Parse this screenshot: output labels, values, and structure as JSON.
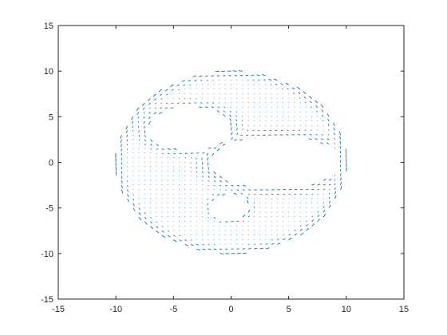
{
  "chart_data": {
    "type": "quiver",
    "title": "",
    "xlabel": "",
    "ylabel": "",
    "xlim": [
      -15,
      15
    ],
    "ylim": [
      -15,
      15
    ],
    "xticks": [
      -15,
      -10,
      -5,
      0,
      5,
      10,
      15
    ],
    "yticks": [
      -15,
      -10,
      -5,
      0,
      5,
      10,
      15
    ],
    "xtick_labels": [
      "-15",
      "-10",
      "-5",
      "0",
      "5",
      "10",
      "15"
    ],
    "ytick_labels": [
      "-15",
      "-10",
      "-5",
      "0",
      "5",
      "10",
      "15"
    ],
    "grid": false,
    "legend": "none",
    "box": true,
    "series_color": "#0072BD",
    "domain": {
      "outer_boundary": {
        "shape": "circle",
        "center": [
          0,
          0
        ],
        "radius": 10
      },
      "holes": [
        {
          "shape": "ellipse",
          "center": [
            -3.6,
            3.7
          ],
          "radii": [
            3.8,
            2.5
          ]
        },
        {
          "shape": "ellipse",
          "center": [
            3.9,
            0
          ],
          "radii": [
            5.8,
            3.0
          ]
        },
        {
          "shape": "ellipse",
          "center": [
            -0.1,
            -4.9
          ],
          "radii": [
            1.7,
            1.5
          ]
        }
      ]
    },
    "arrow_grid": {
      "x_start": -10,
      "x_end": 10,
      "y_start": -10,
      "y_end": 10,
      "step": 0.5
    },
    "field": "tangential at boundaries; small vertical vectors in interior"
  }
}
